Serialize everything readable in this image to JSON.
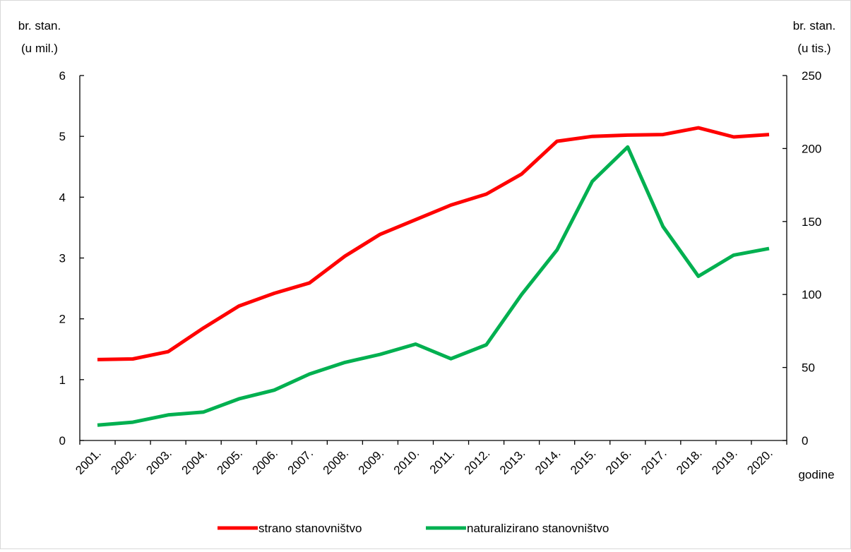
{
  "chart_data": {
    "type": "line",
    "x_label": "godine",
    "categories": [
      "2001.",
      "2002.",
      "2003.",
      "2004.",
      "2005.",
      "2006.",
      "2007.",
      "2008.",
      "2009.",
      "2010.",
      "2011.",
      "2012.",
      "2013.",
      "2014.",
      "2015.",
      "2016.",
      "2017.",
      "2018.",
      "2019.",
      "2020."
    ],
    "y_left": {
      "label_line1": "br. stan.",
      "label_line2": "(u mil.)",
      "range": [
        0,
        6
      ],
      "ticks": [
        0,
        1,
        2,
        3,
        4,
        5,
        6
      ]
    },
    "y_right": {
      "label_line1": "br. stan.",
      "label_line2": "(u tis.)",
      "range": [
        0,
        250
      ],
      "ticks": [
        0,
        50,
        100,
        150,
        200,
        250
      ]
    },
    "series": [
      {
        "name": "strano stanovništvo",
        "axis": "left",
        "color": "#ff0000",
        "values": [
          1.33,
          1.34,
          1.46,
          1.85,
          2.21,
          2.42,
          2.59,
          3.03,
          3.39,
          3.63,
          3.87,
          4.05,
          4.38,
          4.92,
          5.0,
          5.02,
          5.03,
          5.14,
          4.99,
          5.03
        ]
      },
      {
        "name": "naturalizirano stanovništvo",
        "axis": "right",
        "color": "#00b050",
        "values": [
          10.5,
          12.5,
          17.5,
          19.5,
          28.5,
          34.5,
          45.5,
          53.5,
          59.0,
          66.0,
          56.0,
          65.5,
          100.0,
          130.5,
          177.5,
          201.0,
          146.5,
          112.5,
          127.0,
          131.5
        ]
      }
    ],
    "legend_position": "bottom"
  }
}
